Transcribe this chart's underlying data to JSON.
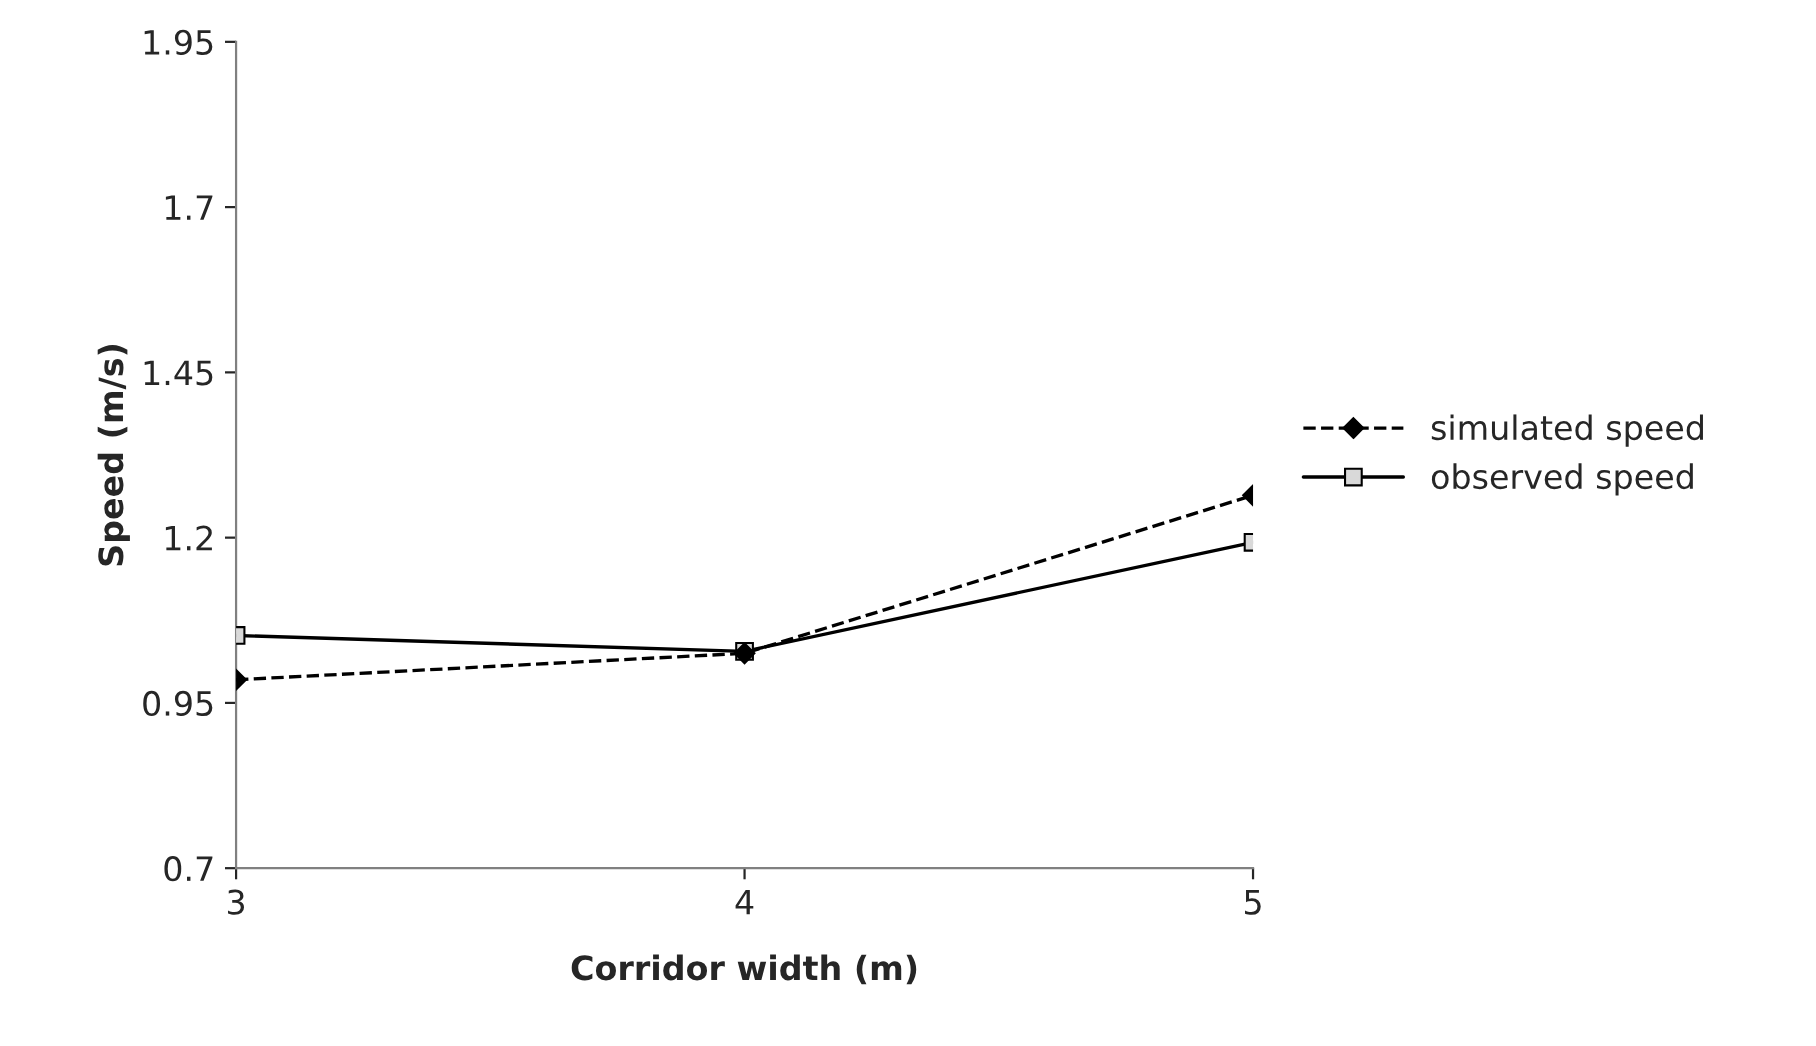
{
  "chart_data": {
    "type": "line",
    "xlabel": "Corridor width (m)",
    "ylabel": "Speed (m/s)",
    "x": [
      3,
      4,
      5
    ],
    "series": [
      {
        "name": "simulated speed",
        "color": "#000000",
        "values": [
          0.985,
          1.025,
          1.264
        ],
        "marker": "diamond",
        "line_style": "dashed"
      },
      {
        "name": "observed speed",
        "color": "#000000",
        "values": [
          1.052,
          1.028,
          1.193
        ],
        "marker": "square",
        "line_style": "solid"
      }
    ],
    "xlim": [
      3,
      5
    ],
    "xticks": [
      3,
      4,
      5
    ],
    "ylim": [
      0.7,
      1.95
    ],
    "yticks": [
      0.7,
      0.95,
      1.2,
      1.45,
      1.7,
      1.95
    ],
    "grid": false,
    "legend": "right"
  }
}
